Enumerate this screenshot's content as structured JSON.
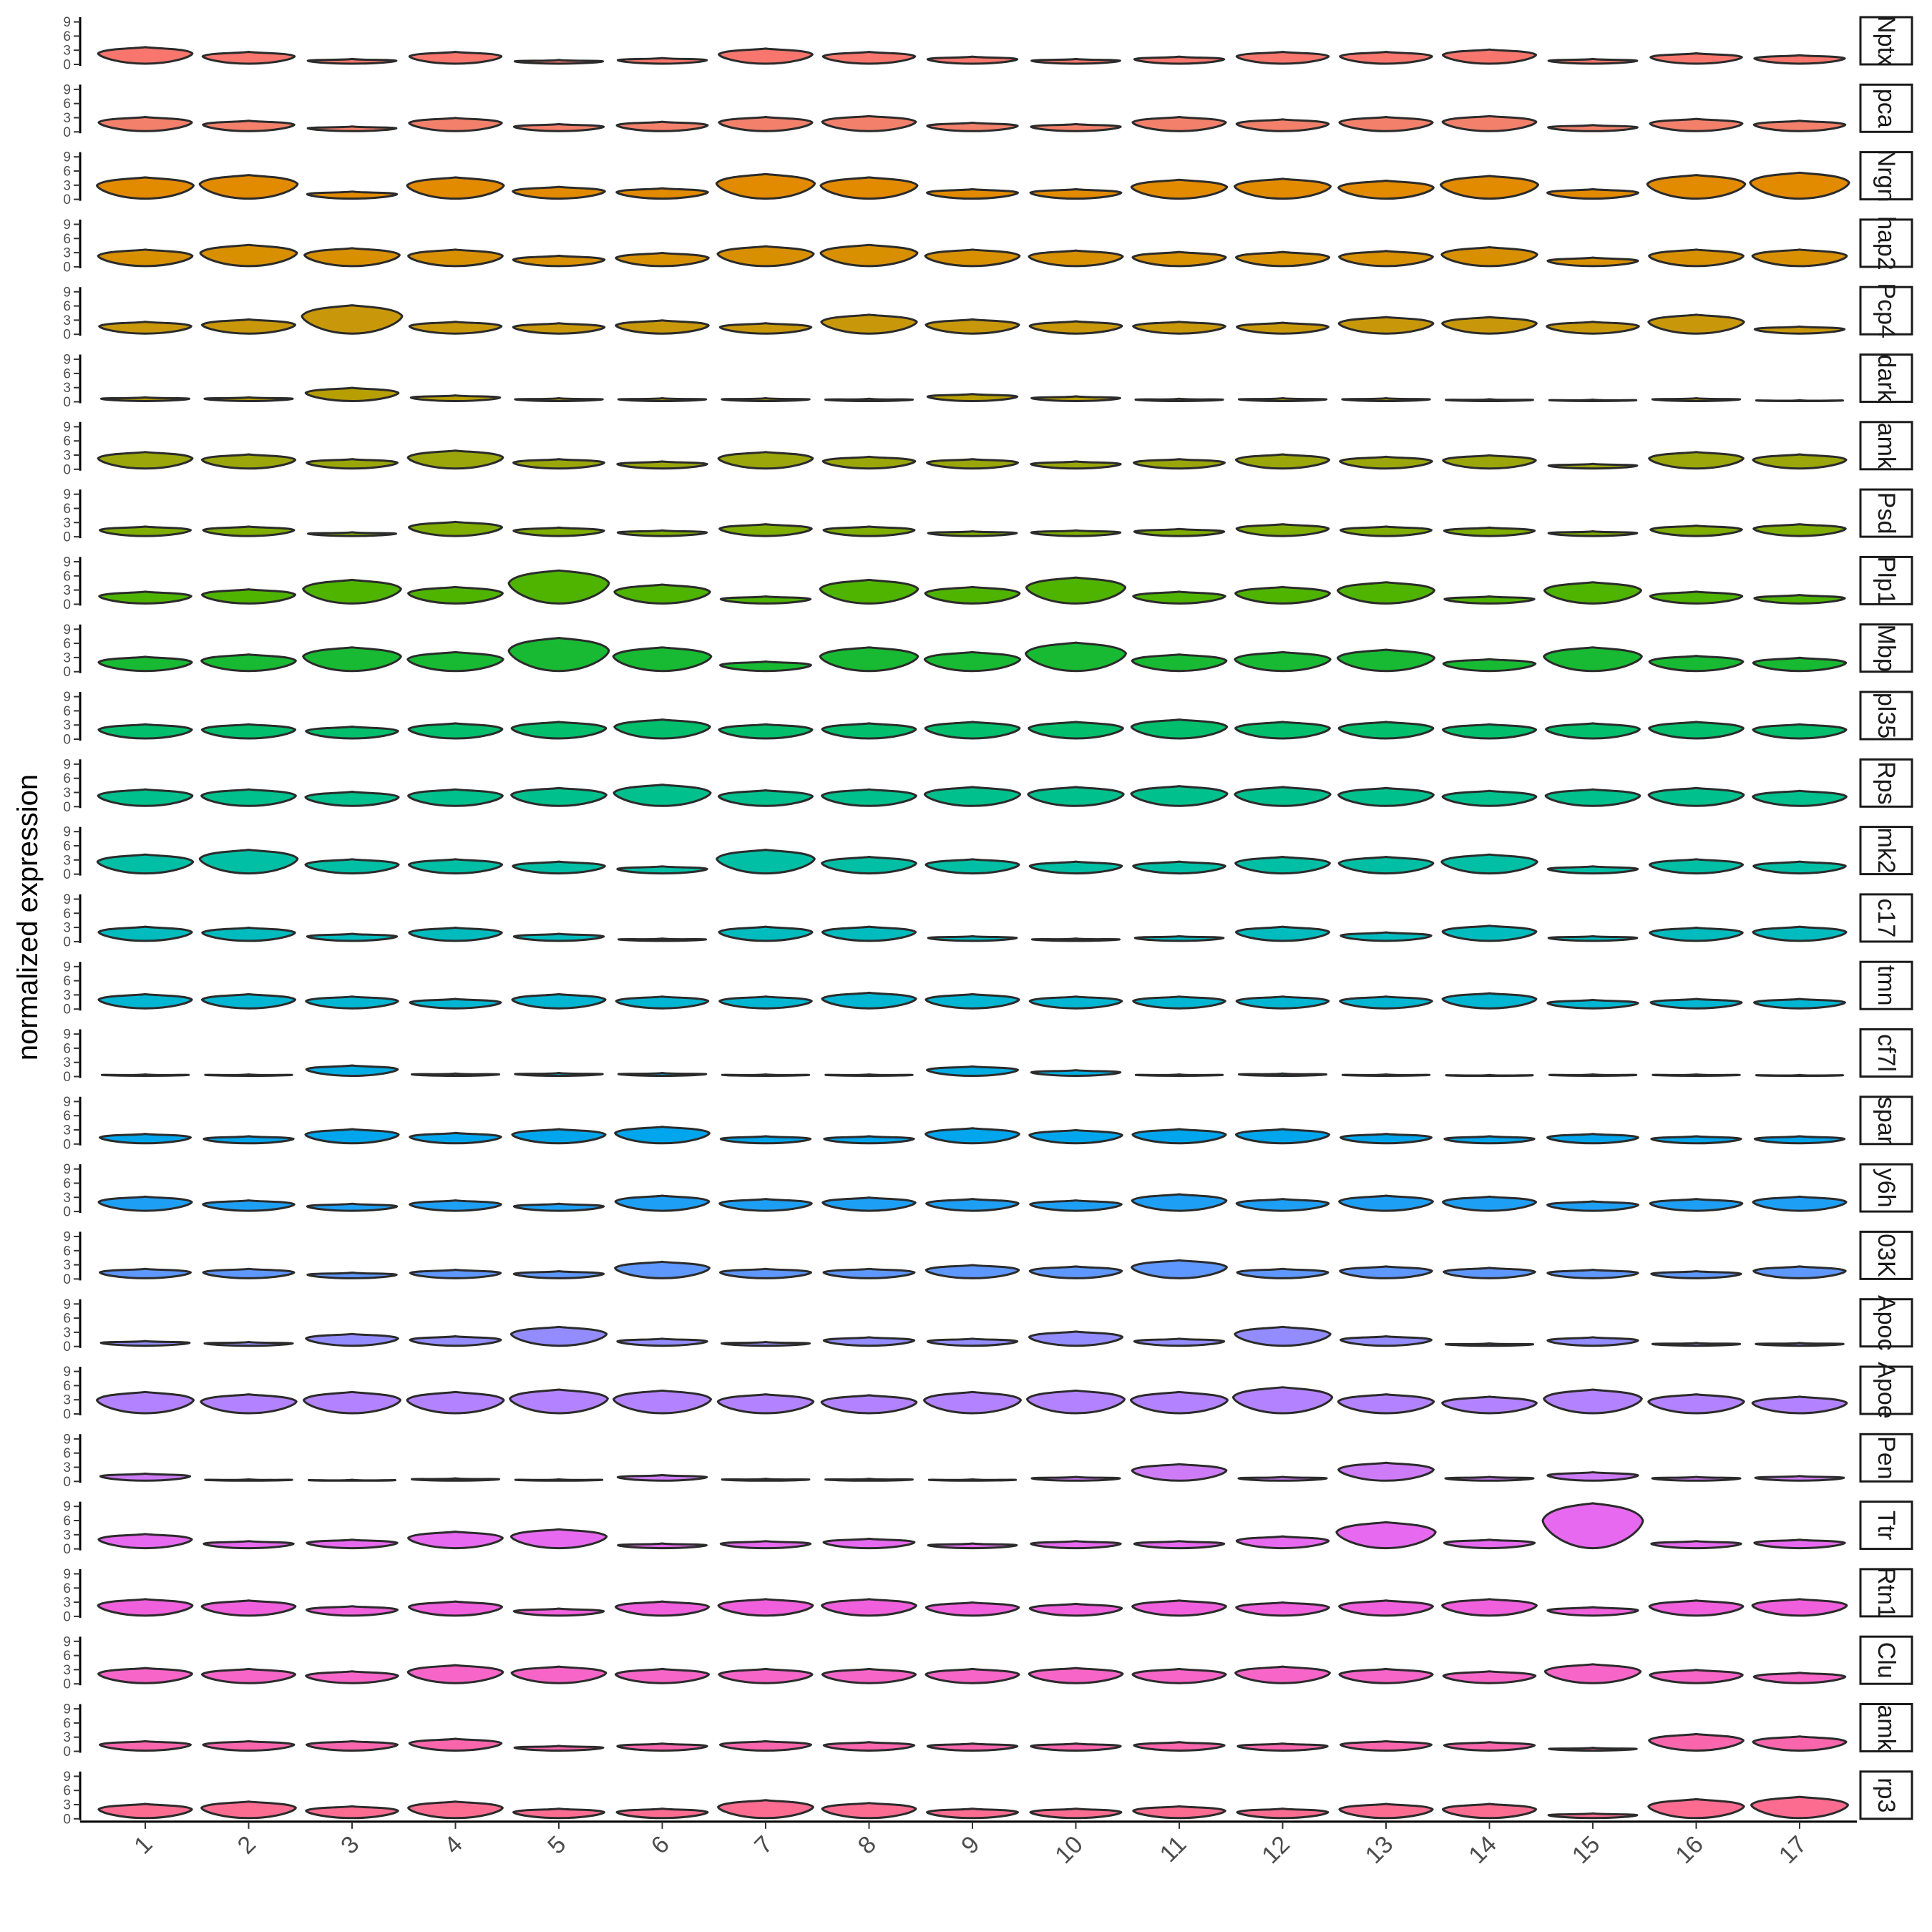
{
  "chart_data": {
    "type": "stacked-violin",
    "ylabel": "normalized expression",
    "xlabel": "",
    "title": "",
    "y_ticks": [
      0,
      3,
      6,
      9
    ],
    "ylim": [
      0,
      10
    ],
    "categories": [
      "1",
      "2",
      "3",
      "4",
      "5",
      "6",
      "7",
      "8",
      "9",
      "10",
      "11",
      "12",
      "13",
      "14",
      "15",
      "16",
      "17"
    ],
    "genes": [
      {
        "name": "Nptx",
        "color": "#F8766D",
        "values": [
          3.5,
          2.5,
          1,
          2.5,
          0.8,
          1.2,
          3.2,
          2.5,
          1.5,
          1,
          1.5,
          2.5,
          2.5,
          3,
          1,
          2.2,
          1.8
        ]
      },
      {
        "name": "pca",
        "color": "#F3806B",
        "values": [
          3,
          2.2,
          1,
          2.8,
          1.5,
          2,
          3,
          3.2,
          1.8,
          1.5,
          3,
          2.5,
          3,
          3.2,
          1.3,
          2.6,
          2.2
        ]
      },
      {
        "name": "Nrgn",
        "color": "#E28A00",
        "values": [
          4.5,
          5,
          1.5,
          4.5,
          2.5,
          2.2,
          5.2,
          4.5,
          2,
          2,
          4,
          4.2,
          3.8,
          4.8,
          2,
          5,
          5.5
        ]
      },
      {
        "name": "hap2",
        "color": "#D89000",
        "values": [
          3.5,
          4.5,
          3.8,
          3.5,
          2.2,
          2.8,
          4.2,
          4.5,
          3.5,
          3.3,
          3,
          3,
          3.2,
          4,
          1.8,
          3.5,
          3.5
        ]
      },
      {
        "name": "Pcp4",
        "color": "#C9980A",
        "values": [
          2.5,
          3,
          6,
          2.5,
          2.2,
          2.8,
          2.2,
          4,
          3,
          2.6,
          2.5,
          2.3,
          3.5,
          3.5,
          2.5,
          4,
          1.5
        ]
      },
      {
        "name": "dark",
        "color": "#B89F00",
        "values": [
          0.8,
          0.8,
          2.8,
          1.2,
          0.6,
          0.6,
          0.6,
          0.5,
          1.5,
          1,
          0.5,
          0.6,
          0.6,
          0.4,
          0.3,
          0.6,
          0.2
        ]
      },
      {
        "name": "amk",
        "color": "#9BA60A",
        "values": [
          3.5,
          3,
          2,
          3.8,
          2,
          1.5,
          3.5,
          2.5,
          2,
          1.5,
          2,
          3,
          2.5,
          2.8,
          1,
          3.5,
          3
        ]
      },
      {
        "name": "Psd",
        "color": "#7FAE00",
        "values": [
          2,
          2,
          0.8,
          3,
          1.8,
          1.2,
          2.5,
          2,
          1,
          1.2,
          1.5,
          2.5,
          2,
          1.8,
          1,
          2.2,
          2.5
        ]
      },
      {
        "name": "Plp1",
        "color": "#4FB400",
        "values": [
          2.5,
          3,
          5,
          3.5,
          7,
          4,
          1.5,
          5,
          3.5,
          5.5,
          2.5,
          3.5,
          4.5,
          1.5,
          4.5,
          2.5,
          1.8
        ]
      },
      {
        "name": "Mbp",
        "color": "#17BA32",
        "values": [
          3,
          3.5,
          5,
          4,
          7,
          5,
          2,
          5,
          4,
          6,
          3.5,
          4,
          4.5,
          2.5,
          5,
          3.2,
          2.8
        ]
      },
      {
        "name": "pl35",
        "color": "#00BE6C",
        "values": [
          3,
          3,
          2.5,
          3.2,
          3.5,
          4,
          3,
          3.2,
          3.5,
          3.5,
          4,
          3.5,
          3.5,
          3,
          3.2,
          3.5,
          3
        ]
      },
      {
        "name": "Rps",
        "color": "#00C08D",
        "values": [
          3.5,
          3.5,
          3,
          3.5,
          3.8,
          4.5,
          3.3,
          3.5,
          4,
          4,
          4.2,
          4,
          3.8,
          3.2,
          3.5,
          3.8,
          3.2
        ]
      },
      {
        "name": "mk2",
        "color": "#00BFA5",
        "values": [
          4,
          5,
          3,
          3,
          2.5,
          1.5,
          5,
          3.5,
          3,
          2.5,
          2.5,
          3.5,
          3.5,
          4,
          1.5,
          3,
          2.5
        ]
      },
      {
        "name": "c17",
        "color": "#00BCBF",
        "values": [
          3,
          2.8,
          1.5,
          2.8,
          1.5,
          0.5,
          3,
          3,
          1,
          0.5,
          1,
          3,
          1.8,
          3.2,
          1,
          2.8,
          3
        ]
      },
      {
        "name": "tmn",
        "color": "#00B6D2",
        "values": [
          3,
          3,
          2.5,
          2,
          3,
          2.5,
          2.5,
          3.3,
          3,
          2.5,
          2.5,
          2.5,
          2.5,
          3.2,
          1.8,
          2,
          2
        ]
      },
      {
        "name": "cf7l",
        "color": "#00ADE2",
        "values": [
          0.3,
          0.3,
          2.2,
          0.5,
          0.6,
          0.6,
          0.3,
          0.3,
          2,
          1.2,
          0.3,
          0.5,
          0.3,
          0.2,
          0.3,
          0.3,
          0.2
        ]
      },
      {
        "name": "spar",
        "color": "#00A6ED",
        "values": [
          2,
          1.5,
          3,
          2.2,
          3,
          3.5,
          1.5,
          1.5,
          3.2,
          2.8,
          3,
          3,
          2,
          1.5,
          2,
          1.5,
          1.5
        ]
      },
      {
        "name": "y6h",
        "color": "#1E9FF6",
        "values": [
          3,
          2.2,
          1.5,
          2.2,
          1.5,
          3.2,
          2.5,
          2.8,
          2.5,
          2.2,
          3.5,
          2.5,
          3.2,
          3,
          2,
          2.5,
          3
        ]
      },
      {
        "name": "03K",
        "color": "#5E97FD",
        "values": [
          2,
          2,
          1.2,
          1.8,
          1.5,
          3.5,
          2,
          2,
          2.8,
          2.5,
          3.8,
          2,
          2.5,
          2.2,
          1.8,
          1.5,
          2.5
        ]
      },
      {
        "name": "Apoc",
        "color": "#938CFF",
        "values": [
          1,
          0.8,
          2.5,
          2,
          4,
          1.5,
          0.8,
          1.8,
          1.5,
          3,
          1.5,
          4,
          2,
          0.5,
          1.8,
          0.6,
          0.6
        ]
      },
      {
        "name": "Apoe",
        "color": "#B383FF",
        "values": [
          4.5,
          4,
          4.5,
          4.5,
          5,
          4.8,
          4,
          3.8,
          4.5,
          4.8,
          4.5,
          5.5,
          4,
          3.5,
          5,
          4,
          3.5
        ]
      },
      {
        "name": "Pen",
        "color": "#CE7BF7",
        "values": [
          1.5,
          0.3,
          0.2,
          0.5,
          0.3,
          1.2,
          0.4,
          0.4,
          0.3,
          0.8,
          3.5,
          0.8,
          3.8,
          0.8,
          1.8,
          0.8,
          1
        ]
      },
      {
        "name": "Ttr",
        "color": "#E769F0",
        "values": [
          3,
          1.5,
          1.8,
          3.5,
          4,
          1,
          1.5,
          2,
          1,
          1.5,
          1.5,
          2.5,
          5.5,
          1.8,
          9.5,
          1.5,
          1.8
        ]
      },
      {
        "name": "Rtn1",
        "color": "#F05FDC",
        "values": [
          3.5,
          3.2,
          2,
          3,
          1.5,
          3,
          3.5,
          3.5,
          2.8,
          2.5,
          3.2,
          2.8,
          3.2,
          3.5,
          1.8,
          3.2,
          3.5
        ]
      },
      {
        "name": "Clu",
        "color": "#F765C8",
        "values": [
          3.2,
          3,
          2.5,
          3.8,
          3.5,
          3,
          3,
          3,
          3,
          3.2,
          3,
          3.5,
          3,
          2.5,
          4,
          2.8,
          2.2
        ]
      },
      {
        "name": "amk",
        "color": "#FA66AD",
        "values": [
          2,
          2,
          2,
          2.5,
          1,
          1.5,
          2,
          1.8,
          1.5,
          1.5,
          1.8,
          1.5,
          2,
          1.8,
          0.6,
          3.5,
          3
        ]
      },
      {
        "name": "rp3",
        "color": "#FB6C90",
        "values": [
          3,
          3.5,
          2.5,
          3.5,
          2,
          2,
          3.8,
          3.2,
          2,
          2,
          2.5,
          2,
          3,
          3,
          1,
          4,
          4.5
        ]
      }
    ]
  }
}
